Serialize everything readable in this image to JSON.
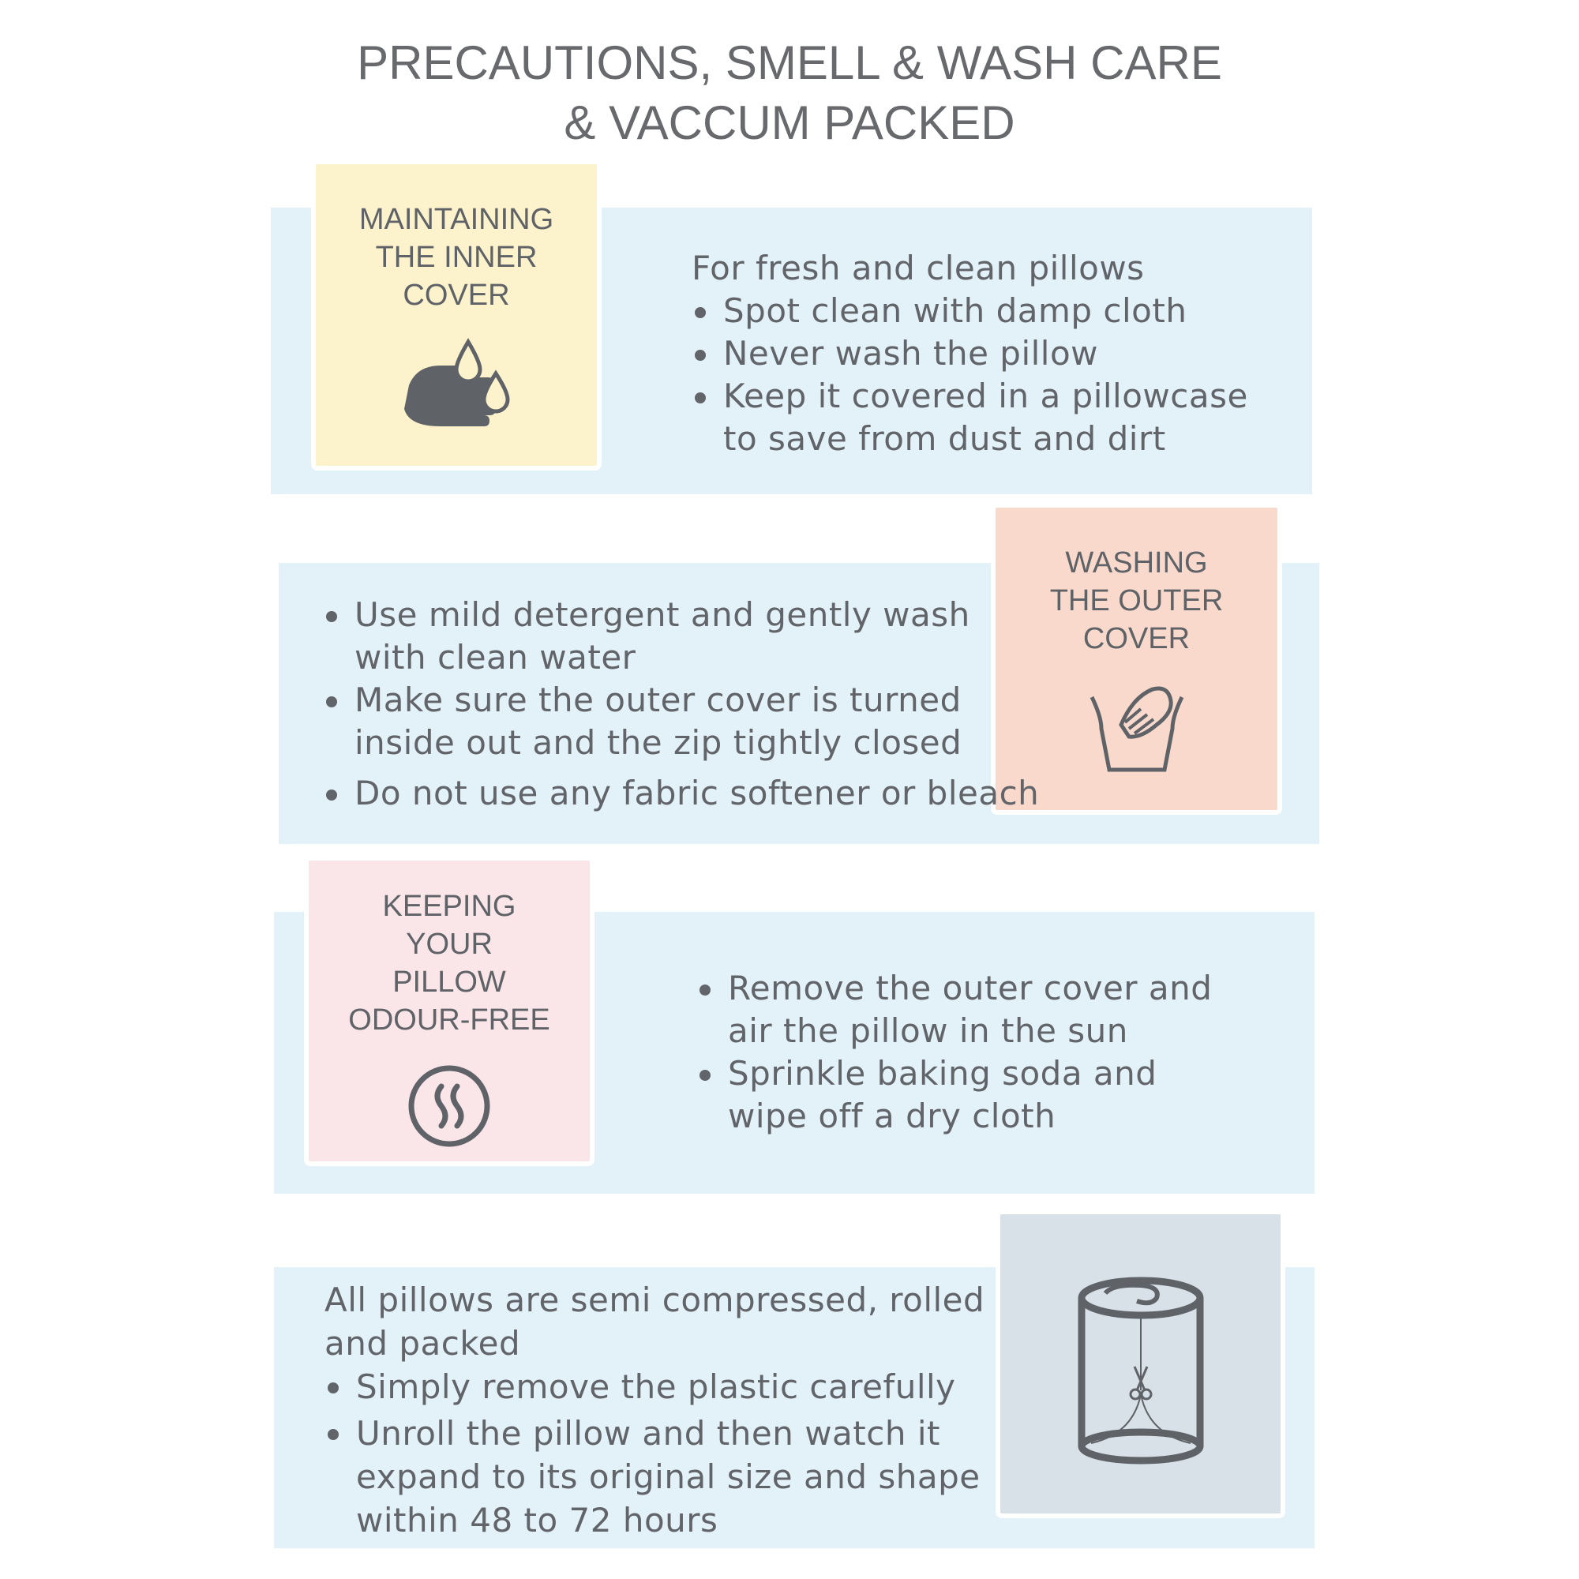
{
  "title": {
    "line1": "PRECAUTIONS, SMELL & WASH CARE",
    "line2": "& VACCUM PACKED"
  },
  "colors": {
    "panel": "#e3f1f8",
    "yellow": "#fcf2cc",
    "peach": "#f9d9cc",
    "pink": "#fae6e8",
    "gray": "#d8e0e8",
    "icon": "#5f6368"
  },
  "sections": [
    {
      "heading": [
        "MAINTAINING",
        "THE INNER",
        "COVER"
      ],
      "icon": "hand-wash-drops-icon",
      "lines": [
        "For fresh and clean pillows",
        "Spot clean with damp cloth",
        "Never wash the pillow",
        "Keep it covered in a pillowcase",
        "to save from dust and dirt"
      ]
    },
    {
      "heading": [
        "WASHING",
        "THE OUTER",
        "COVER"
      ],
      "icon": "hand-wash-basin-icon",
      "lines": [
        "Use mild detergent and gently wash",
        "with clean water",
        "Make sure the outer cover is turned",
        "inside out and the zip tightly closed",
        "Do not use any fabric softener or bleach"
      ]
    },
    {
      "heading": [
        "KEEPING",
        "YOUR",
        "PILLOW",
        "ODOUR-FREE"
      ],
      "icon": "odour-steam-icon",
      "lines": [
        "Remove the outer cover and",
        "air the pillow in the sun",
        "Sprinkle baking soda and",
        "wipe off a dry cloth"
      ]
    },
    {
      "icon": "rolled-pillow-scissors-icon",
      "lines": [
        "All pillows are semi compressed, rolled",
        "and packed",
        "Simply remove the plastic carefully",
        "Unroll the pillow and then watch it",
        "expand to its original size and shape",
        "within 48 to 72 hours"
      ]
    }
  ]
}
